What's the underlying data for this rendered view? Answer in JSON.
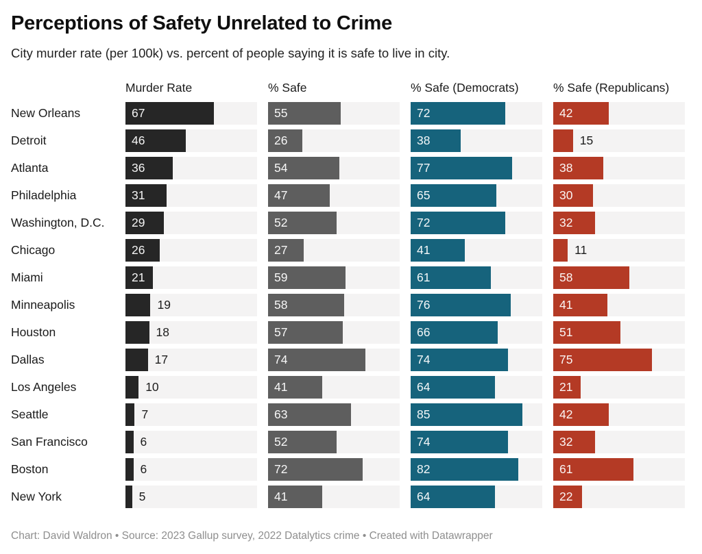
{
  "header": {
    "title": "Perceptions of Safety Unrelated to Crime",
    "subtitle": "City murder rate (per 100k) vs. percent of people saying it is safe to live in city."
  },
  "chart_data": {
    "type": "bar",
    "title": "Perceptions of Safety Unrelated to Crime",
    "subtitle": "City murder rate (per 100k) vs. percent of people saying it is safe to live in city.",
    "categories": [
      "New Orleans",
      "Detroit",
      "Atlanta",
      "Philadelphia",
      "Washington, D.C.",
      "Chicago",
      "Miami",
      "Minneapolis",
      "Houston",
      "Dallas",
      "Los Angeles",
      "Seattle",
      "San Francisco",
      "Boston",
      "New York"
    ],
    "series": [
      {
        "name": "Murder Rate",
        "color": "#262626",
        "values": [
          67,
          46,
          36,
          31,
          29,
          26,
          21,
          19,
          18,
          17,
          10,
          7,
          6,
          6,
          5
        ]
      },
      {
        "name": "% Safe",
        "color": "#5e5e5e",
        "values": [
          55,
          26,
          54,
          47,
          52,
          27,
          59,
          58,
          57,
          74,
          41,
          63,
          52,
          72,
          41
        ]
      },
      {
        "name": "% Safe (Democrats)",
        "color": "#16637c",
        "values": [
          72,
          38,
          77,
          65,
          72,
          41,
          61,
          76,
          66,
          74,
          64,
          85,
          74,
          82,
          64
        ]
      },
      {
        "name": "% Safe (Republicans)",
        "color": "#b43a25",
        "values": [
          42,
          15,
          38,
          30,
          32,
          11,
          58,
          41,
          51,
          75,
          21,
          42,
          32,
          61,
          22
        ]
      }
    ],
    "xlim": [
      0,
      100
    ],
    "grid": false,
    "legend_position": "none",
    "track_color": "#f4f3f3",
    "inside_label_min": 20
  },
  "footer": {
    "text": "Chart: David Waldron • Source: 2023 Gallup survey, 2022 Datalytics crime • Created with Datawrapper"
  }
}
